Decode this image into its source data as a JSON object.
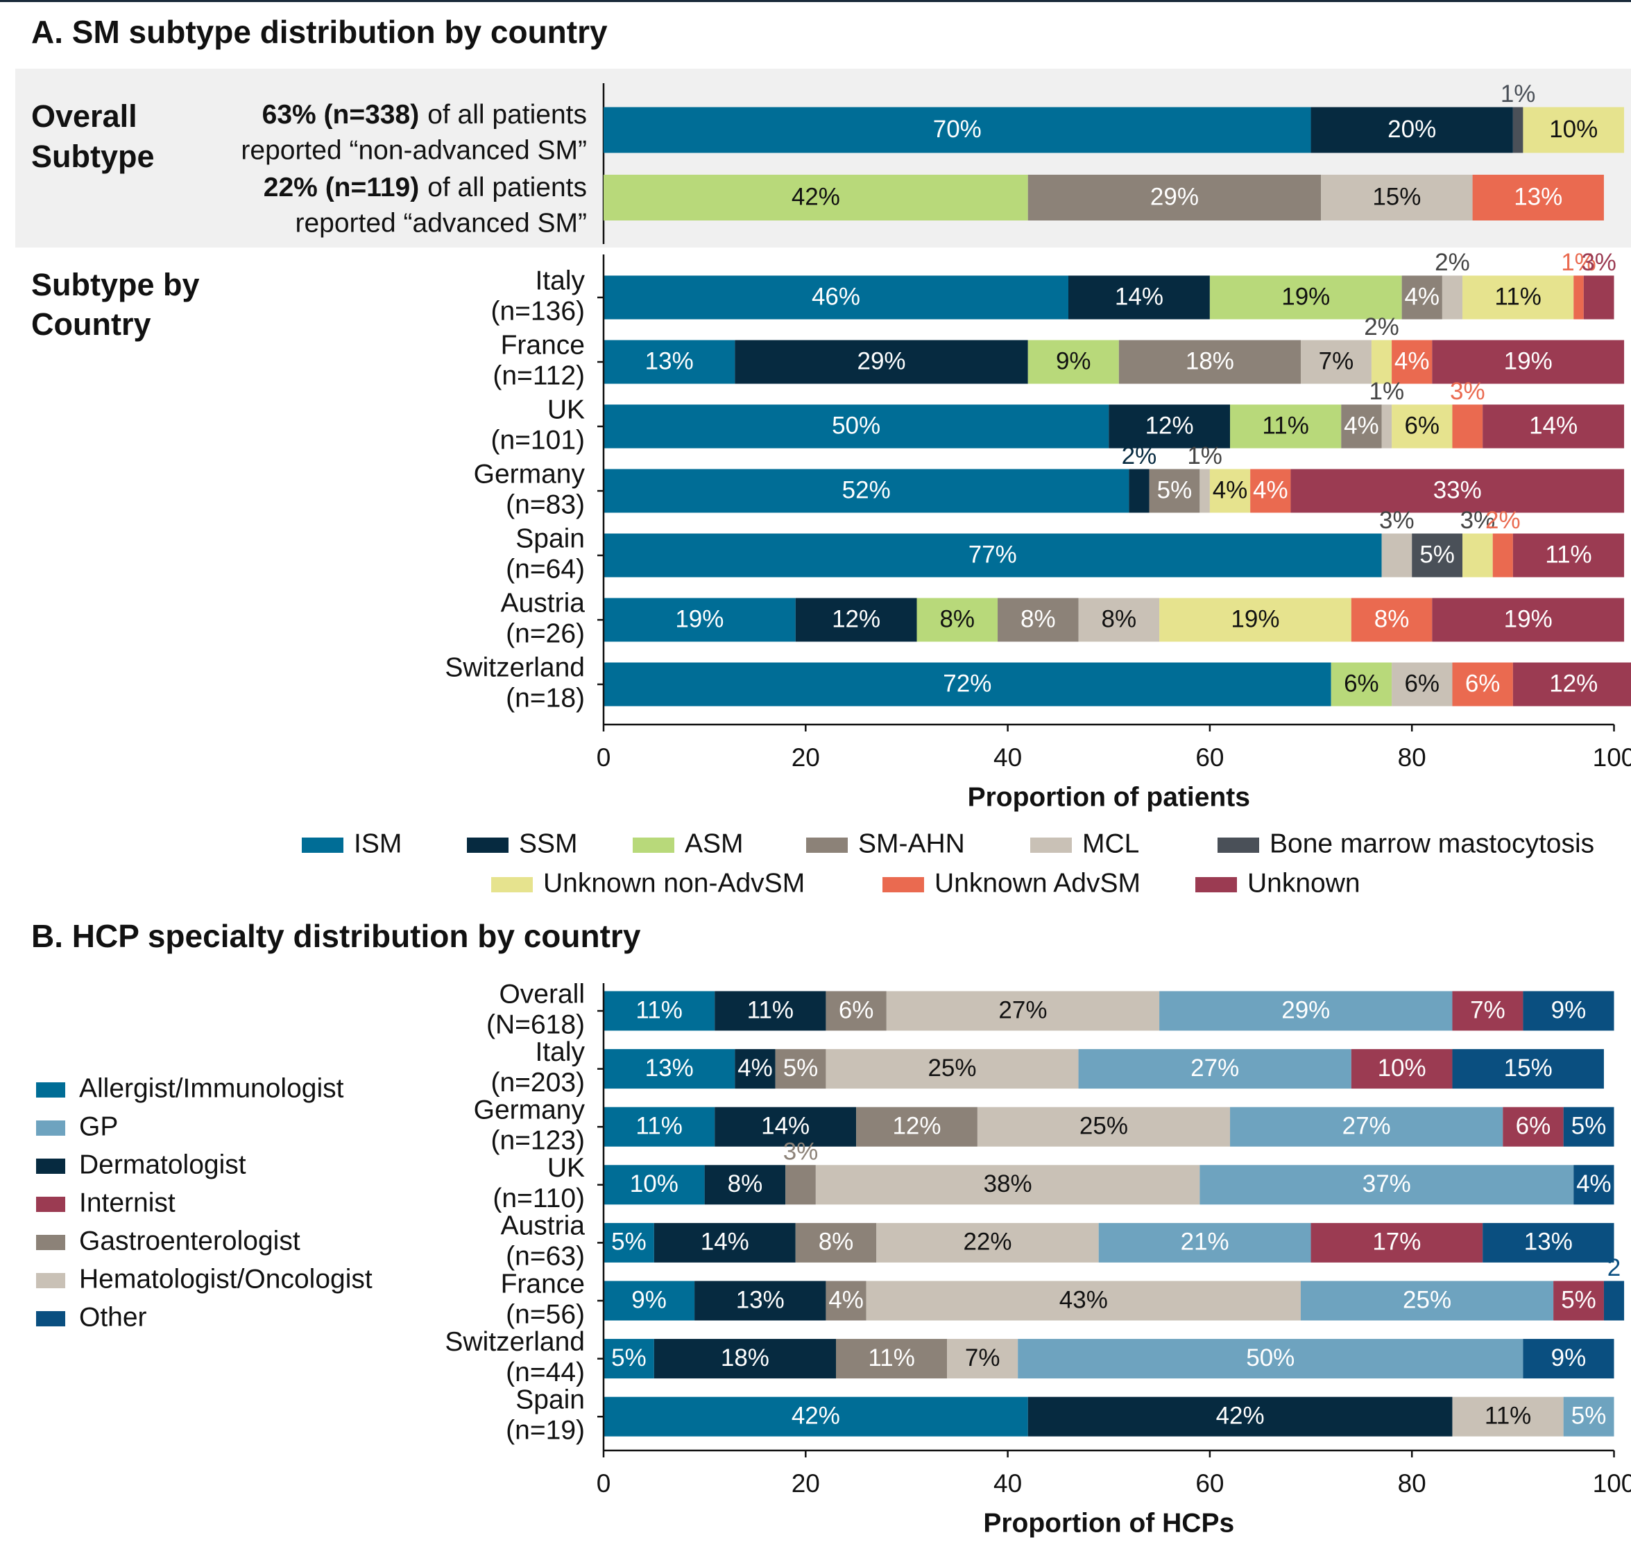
{
  "chart_data": [
    {
      "type": "bar",
      "orientation": "horizontal",
      "stacked": true,
      "title": "A. SM subtype distribution by country",
      "overall_heading": [
        "Overall",
        "Subtype"
      ],
      "overall_rows": [
        {
          "bold": "63% (n=338)",
          "text": "of all patients",
          "line2": "reported “non-advanced SM”"
        },
        {
          "bold": "22% (n=119)",
          "text": "of all patients",
          "line2": "reported “advanced SM”"
        }
      ],
      "country_heading": [
        "Subtype by",
        "Country"
      ],
      "categories": [
        [
          "Italy",
          "(n=136)"
        ],
        [
          "France",
          "(n=112)"
        ],
        [
          "UK",
          "(n=101)"
        ],
        [
          "Germany",
          "(n=83)"
        ],
        [
          "Spain",
          "(n=64)"
        ],
        [
          "Austria",
          "(n=26)"
        ],
        [
          "Switzerland",
          "(n=18)"
        ]
      ],
      "series": [
        {
          "name": "ISM",
          "color": "#006d96",
          "values": [
            46,
            13,
            50,
            52,
            77,
            19,
            72
          ],
          "value_labels": [
            "46%",
            "13%",
            "50%",
            "52%",
            "77%",
            "19%",
            "72%"
          ],
          "overall_values": [
            70,
            null
          ],
          "overall_labels": [
            "70%",
            null
          ]
        },
        {
          "name": "SSM",
          "color": "#062a40",
          "values": [
            14,
            29,
            12,
            2,
            null,
            12,
            null
          ],
          "value_labels": [
            "14%",
            "29%",
            "12%",
            "2%",
            null,
            "12%",
            null
          ],
          "overall_values": [
            20,
            null
          ],
          "overall_labels": [
            "20%",
            null
          ]
        },
        {
          "name": "ASM",
          "color": "#b8d97a",
          "values": [
            19,
            9,
            11,
            null,
            null,
            8,
            6
          ],
          "value_labels": [
            "19%",
            "9%",
            "11%",
            null,
            null,
            "8%",
            "6%"
          ],
          "overall_values": [
            null,
            42
          ],
          "overall_labels": [
            null,
            "42%"
          ]
        },
        {
          "name": "SM-AHN",
          "color": "#8c8278",
          "values": [
            4,
            18,
            4,
            5,
            null,
            8,
            null
          ],
          "value_labels": [
            "4%",
            "18%",
            "4%",
            "5%",
            null,
            "8%",
            null
          ],
          "overall_values": [
            null,
            29
          ],
          "overall_labels": [
            null,
            "29%"
          ]
        },
        {
          "name": "MCL",
          "color": "#c9c1b6",
          "values": [
            2,
            7,
            1,
            1,
            3,
            8,
            6
          ],
          "value_labels": [
            "2%",
            "7%",
            "1%",
            "1%",
            "3%",
            "8%",
            "6%"
          ],
          "overall_values": [
            null,
            15
          ],
          "overall_labels": [
            null,
            "15%"
          ]
        },
        {
          "name": "Bone marrow mastocytosis",
          "color": "#4a5058",
          "values": [
            null,
            null,
            null,
            null,
            5,
            null,
            null
          ],
          "value_labels": [
            null,
            null,
            null,
            null,
            "5%",
            null,
            null
          ],
          "overall_values": [
            1,
            null
          ],
          "overall_labels": [
            "1%",
            null
          ]
        },
        {
          "name": "Unknown non-AdvSM",
          "color": "#e6e38e",
          "values": [
            11,
            2,
            6,
            4,
            3,
            19,
            null
          ],
          "value_labels": [
            "11%",
            "2%",
            "6%",
            "4%",
            "3%",
            "19%",
            null
          ],
          "overall_values": [
            10,
            null
          ],
          "overall_labels": [
            "10%",
            null
          ]
        },
        {
          "name": "Unknown AdvSM",
          "color": "#ea6a50",
          "values": [
            1,
            4,
            3,
            4,
            2,
            8,
            6
          ],
          "value_labels": [
            "1%",
            "4%",
            "3%",
            "4%",
            "2%",
            "8%",
            "6%"
          ],
          "overall_values": [
            null,
            13
          ],
          "overall_labels": [
            null,
            "13%"
          ]
        },
        {
          "name": "Unknown",
          "color": "#9b3b52",
          "values": [
            3,
            19,
            14,
            33,
            11,
            19,
            12
          ],
          "value_labels": [
            "3%",
            "19%",
            "14%",
            "33%",
            "11%",
            "19%",
            "12%"
          ],
          "overall_values": [
            null,
            null
          ],
          "overall_labels": [
            null,
            null
          ]
        }
      ],
      "xlim": [
        0,
        100
      ],
      "xticks": [
        0,
        20,
        40,
        60,
        80,
        100
      ],
      "xlabel": "Proportion of patients",
      "legend": "bottom"
    },
    {
      "type": "bar",
      "orientation": "horizontal",
      "stacked": true,
      "title": "B. HCP specialty distribution by country",
      "categories": [
        [
          "Overall",
          "(N=618)"
        ],
        [
          "Italy",
          "(n=203)"
        ],
        [
          "Germany",
          "(n=123)"
        ],
        [
          "UK",
          "(n=110)"
        ],
        [
          "Austria",
          "(n=63)"
        ],
        [
          "France",
          "(n=56)"
        ],
        [
          "Switzerland",
          "(n=44)"
        ],
        [
          "Spain",
          "(n=19)"
        ]
      ],
      "series": [
        {
          "name": "Allergist/Immunologist",
          "color": "#006d96",
          "values": [
            11,
            13,
            11,
            10,
            5,
            9,
            5,
            42
          ],
          "value_labels": [
            "11%",
            "13%",
            "11%",
            "10%",
            "5%",
            "9%",
            "5%",
            "42%"
          ]
        },
        {
          "name": "GP",
          "color": "#6ea3bf",
          "values": [
            29,
            27,
            27,
            37,
            21,
            25,
            50,
            5
          ],
          "value_labels": [
            "29%",
            "27%",
            "27%",
            "37%",
            "21%",
            "25%",
            "50%",
            "5%"
          ]
        },
        {
          "name": "Dermatologist",
          "color": "#062a40",
          "values": [
            11,
            4,
            14,
            8,
            14,
            13,
            18,
            42
          ],
          "value_labels": [
            "11%",
            "4%",
            "14%",
            "8%",
            "14%",
            "13%",
            "18%",
            "42%"
          ]
        },
        {
          "name": "Internist",
          "color": "#9b3b52",
          "values": [
            7,
            10,
            6,
            null,
            17,
            5,
            null,
            null
          ],
          "value_labels": [
            "7%",
            "10%",
            "6%",
            null,
            "17%",
            "5%",
            null,
            null
          ]
        },
        {
          "name": "Gastroenterologist",
          "color": "#8c8278",
          "values": [
            6,
            5,
            12,
            3,
            8,
            4,
            11,
            null
          ],
          "value_labels": [
            "6%",
            "5%",
            "12%",
            "3%",
            "8%",
            "4%",
            "11%",
            null
          ]
        },
        {
          "name": "Hematologist/Oncologist",
          "color": "#c9c1b6",
          "values": [
            27,
            25,
            25,
            38,
            22,
            43,
            7,
            11
          ],
          "value_labels": [
            "27%",
            "25%",
            "25%",
            "38%",
            "22%",
            "43%",
            "7%",
            "11%"
          ]
        },
        {
          "name": "Other",
          "color": "#0a4f80",
          "values": [
            9,
            15,
            5,
            4,
            13,
            2,
            9,
            null
          ],
          "value_labels": [
            "9%",
            "15%",
            "5%",
            "4%",
            "13%",
            "2",
            "9%",
            null
          ]
        }
      ],
      "stack_order": [
        0,
        2,
        4,
        5,
        1,
        3,
        6
      ],
      "xlim": [
        0,
        100
      ],
      "xticks": [
        0,
        20,
        40,
        60,
        80,
        100
      ],
      "xlabel": "Proportion of HCPs",
      "legend": "left"
    }
  ]
}
